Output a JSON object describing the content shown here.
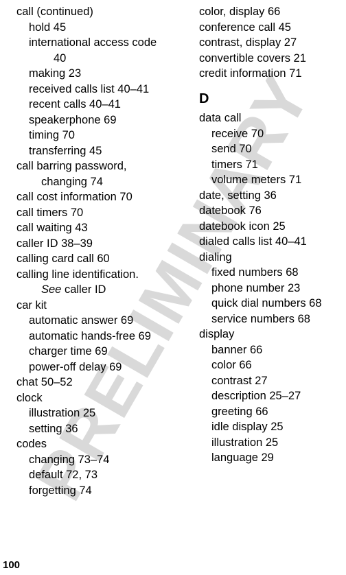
{
  "watermark": "PRELIMINARY",
  "page_number": "100",
  "left": {
    "e0": "call (continued)",
    "e1": "hold  45",
    "e2": "international access code",
    "e2b": "40",
    "e3": "making  23",
    "e4": "received calls list  40–41",
    "e5": "recent calls  40–41",
    "e6": "speakerphone  69",
    "e7": "timing  70",
    "e8": "transferring  45",
    "e9": "call barring password,",
    "e9b": "changing  74",
    "e10": "call cost information  70",
    "e11": "call timers  70",
    "e12": "call waiting  43",
    "e13": "caller ID  38–39",
    "e14": "calling card call  60",
    "e15": "calling line identification.",
    "e15b_pre": "See",
    "e15b_post": " caller ID",
    "e16": "car kit",
    "e17": "automatic answer  69",
    "e18": "automatic hands-free  69",
    "e19": "charger time  69",
    "e20": "power-off delay  69",
    "e21": "chat  50–52",
    "e22": "clock",
    "e23": "illustration  25",
    "e24": "setting  36",
    "e25": "codes",
    "e26": "changing  73–74",
    "e27": "default  72, 73",
    "e28": "forgetting  74"
  },
  "right": {
    "e0": "color, display  66",
    "e1": "conference call  45",
    "e2": "contrast, display  27",
    "e3": "convertible covers  21",
    "e4": "credit information  71",
    "secD": "D",
    "e5": "data call",
    "e6": "receive  70",
    "e7": "send  70",
    "e8": "timers  71",
    "e9": "volume meters  71",
    "e10": "date, setting  36",
    "e11": "datebook  76",
    "e12": "datebook icon  25",
    "e13": "dialed calls list  40–41",
    "e14": "dialing",
    "e15": "fixed numbers  68",
    "e16": "phone number  23",
    "e17": "quick dial numbers  68",
    "e18": "service numbers  68",
    "e19": "display",
    "e20": "banner  66",
    "e21": "color  66",
    "e22": "contrast  27",
    "e23": "description  25–27",
    "e24": "greeting  66",
    "e25": "idle display  25",
    "e26": "illustration  25",
    "e27": "language  29"
  }
}
